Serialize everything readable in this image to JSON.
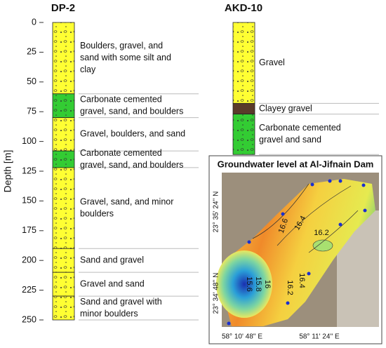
{
  "dp2": {
    "title": "DP-2",
    "axis_label": "Depth [m]",
    "ylim": [
      0,
      250
    ],
    "yticks": [
      0,
      25,
      50,
      75,
      100,
      125,
      150,
      175,
      200,
      225,
      250
    ],
    "layers": [
      {
        "label": [
          "Boulders, gravel, and",
          "sand with some silt and",
          "clay"
        ],
        "top": 0,
        "bottom": 60,
        "color": "#ffff33"
      },
      {
        "label": [
          "Carbonate cemented",
          "gravel, sand, and boulders"
        ],
        "top": 60,
        "bottom": 80,
        "color": "#33cc33"
      },
      {
        "label": [
          "Gravel, boulders, and sand"
        ],
        "top": 80,
        "bottom": 108,
        "color": "#ffff33"
      },
      {
        "label": [
          "Carbonate cemented",
          "gravel, sand, and boulders"
        ],
        "top": 108,
        "bottom": 122,
        "color": "#33cc33"
      },
      {
        "label": [
          "Gravel, sand, and minor",
          "boulders"
        ],
        "top": 122,
        "bottom": 190,
        "color": "#ffff33"
      },
      {
        "label": [
          "Sand and gravel"
        ],
        "top": 190,
        "bottom": 210,
        "color": "#ffff33"
      },
      {
        "label": [
          "Gravel and sand"
        ],
        "top": 210,
        "bottom": 230,
        "color": "#ffff33"
      },
      {
        "label": [
          "Sand and gravel with",
          "minor boulders"
        ],
        "top": 230,
        "bottom": 250,
        "color": "#ffff33"
      }
    ]
  },
  "akd10": {
    "title": "AKD-10",
    "layers": [
      {
        "label": [
          "Gravel"
        ],
        "top": 0,
        "bottom": 68,
        "color": "#ffff33"
      },
      {
        "label": [
          "Clayey gravel"
        ],
        "top": 68,
        "bottom": 77,
        "color": "#5a3a2a"
      },
      {
        "label": [
          "Carbonate cemented",
          "gravel and sand"
        ],
        "top": 77,
        "bottom": 111,
        "color": "#33cc33"
      }
    ]
  },
  "map": {
    "title": "Groundwater level at Al-Jifnain Dam",
    "contour_labels": [
      16.6,
      16.4,
      16.2,
      15.6,
      15.8,
      16,
      16.2,
      16.4
    ],
    "lat_labels": [
      "23° 35' 24'' N",
      "23° 34' 48'' N"
    ],
    "lon_labels": [
      "58° 10' 48'' E",
      "58° 11' 24'' E"
    ]
  }
}
